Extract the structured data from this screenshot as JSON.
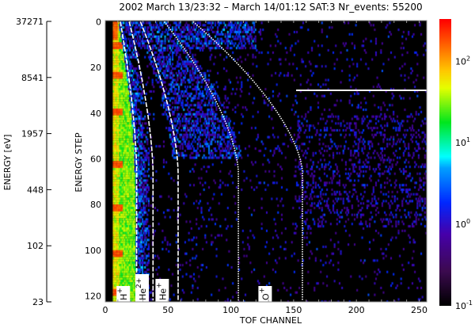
{
  "chart_data": {
    "type": "heatmap",
    "title": "2002 March 13/23:32 – March 14/01:12     SAT:3     Nr_events: 55200",
    "xlabel": "TOF CHANNEL",
    "ylabel": "ENERGY STEP",
    "ylabel_secondary": "ENERGY [eV]",
    "xlim": [
      0,
      256
    ],
    "ylim": [
      122.6,
      -0.5
    ],
    "x_ticks": [
      0,
      50,
      100,
      150,
      200,
      250
    ],
    "y_ticks": [
      0,
      20,
      40,
      60,
      80,
      100,
      120
    ],
    "energy_ticks": [
      "37271",
      "8541",
      "1957",
      "448",
      "102",
      "23"
    ],
    "colorbar": {
      "scale": "log",
      "range": [
        0.1,
        330
      ],
      "ticks": [
        {
          "base": "10",
          "exp": "2"
        },
        {
          "base": "10",
          "exp": "1"
        },
        {
          "base": "10",
          "exp": "0"
        },
        {
          "base": "10",
          "exp": "-1"
        }
      ],
      "colormap": "rainbow (black-purple-blue-cyan-green-yellow-red)"
    },
    "background_color": "#000000",
    "mass_lines": [
      {
        "channel_at_step0": 12,
        "channel_vertical": 25,
        "style": "dashed"
      },
      {
        "channel_at_step0": 19,
        "channel_vertical": 38,
        "style": "dashed"
      },
      {
        "channel_at_step0": 28,
        "channel_vertical": 58,
        "style": "dashed"
      },
      {
        "channel_at_step0": 47,
        "channel_vertical": 106,
        "style": "dotted"
      },
      {
        "channel_at_step0": 70,
        "channel_vertical": 157,
        "style": "dotted"
      }
    ],
    "horizontal_line": {
      "step": 30,
      "channel_from": 152,
      "channel_to": 256
    },
    "ion_labels": [
      {
        "base": "H",
        "charge": "+",
        "channel": 14
      },
      {
        "base": "He",
        "charge": "2+",
        "channel": 29
      },
      {
        "base": "He",
        "charge": "+",
        "channel": 45
      },
      {
        "base": "O",
        "charge": "+",
        "channel": 127
      }
    ],
    "series_note_colors": {
      "line": "#ffffff"
    }
  }
}
